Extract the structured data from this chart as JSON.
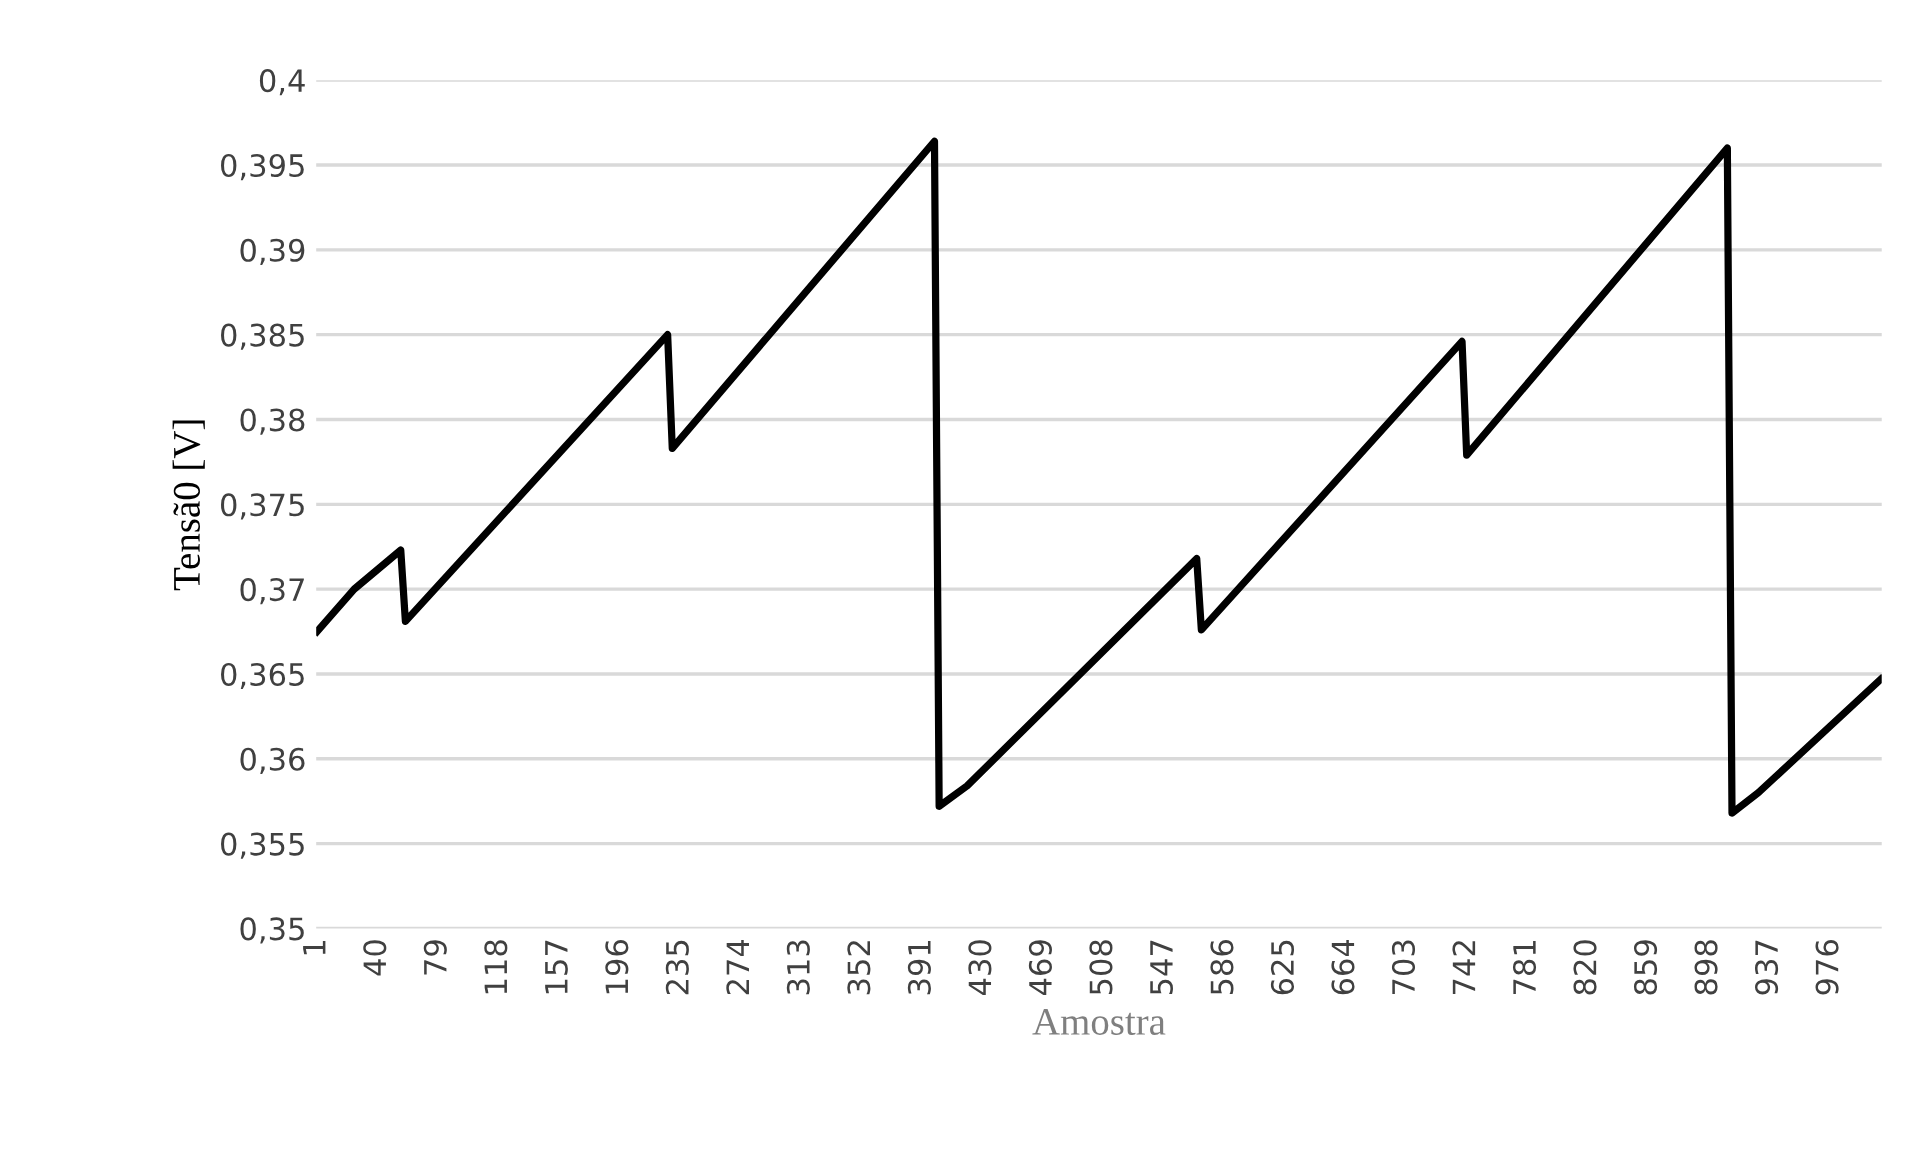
{
  "chart_data": {
    "type": "line",
    "xlabel": "Amostra",
    "ylabel": "Tensã0 [V]",
    "series": [
      {
        "color": "#000000",
        "x": [
          1,
          25,
          55,
          58,
          227,
          230,
          399,
          402,
          420,
          568,
          571,
          739,
          742,
          910,
          913,
          930,
          1009
        ],
        "values": [
          0.3675,
          0.37,
          0.3723,
          0.3681,
          0.385,
          0.3783,
          0.3964,
          0.3572,
          0.3584,
          0.3718,
          0.3676,
          0.3846,
          0.3779,
          0.396,
          0.3568,
          0.358,
          0.3647
        ]
      }
    ],
    "xlim": [
      0.5,
      1009.5
    ],
    "xticks": [
      1,
      40,
      79,
      118,
      157,
      196,
      235,
      274,
      313,
      352,
      391,
      430,
      469,
      508,
      547,
      586,
      625,
      664,
      703,
      742,
      781,
      820,
      859,
      898,
      937,
      976
    ],
    "ylim": [
      0.35,
      0.4
    ],
    "yticks": [
      {
        "value": 0.35,
        "label": "0,35"
      },
      {
        "value": 0.355,
        "label": "0,355"
      },
      {
        "value": 0.36,
        "label": "0,36"
      },
      {
        "value": 0.365,
        "label": "0,365"
      },
      {
        "value": 0.37,
        "label": "0,37"
      },
      {
        "value": 0.375,
        "label": "0,375"
      },
      {
        "value": 0.38,
        "label": "0,38"
      },
      {
        "value": 0.385,
        "label": "0,385"
      },
      {
        "value": 0.39,
        "label": "0,39"
      },
      {
        "value": 0.395,
        "label": "0,395"
      },
      {
        "value": 0.4,
        "label": "0,4"
      }
    ],
    "grid": "y",
    "legend": false,
    "marker": "none",
    "line_style": "solid"
  }
}
